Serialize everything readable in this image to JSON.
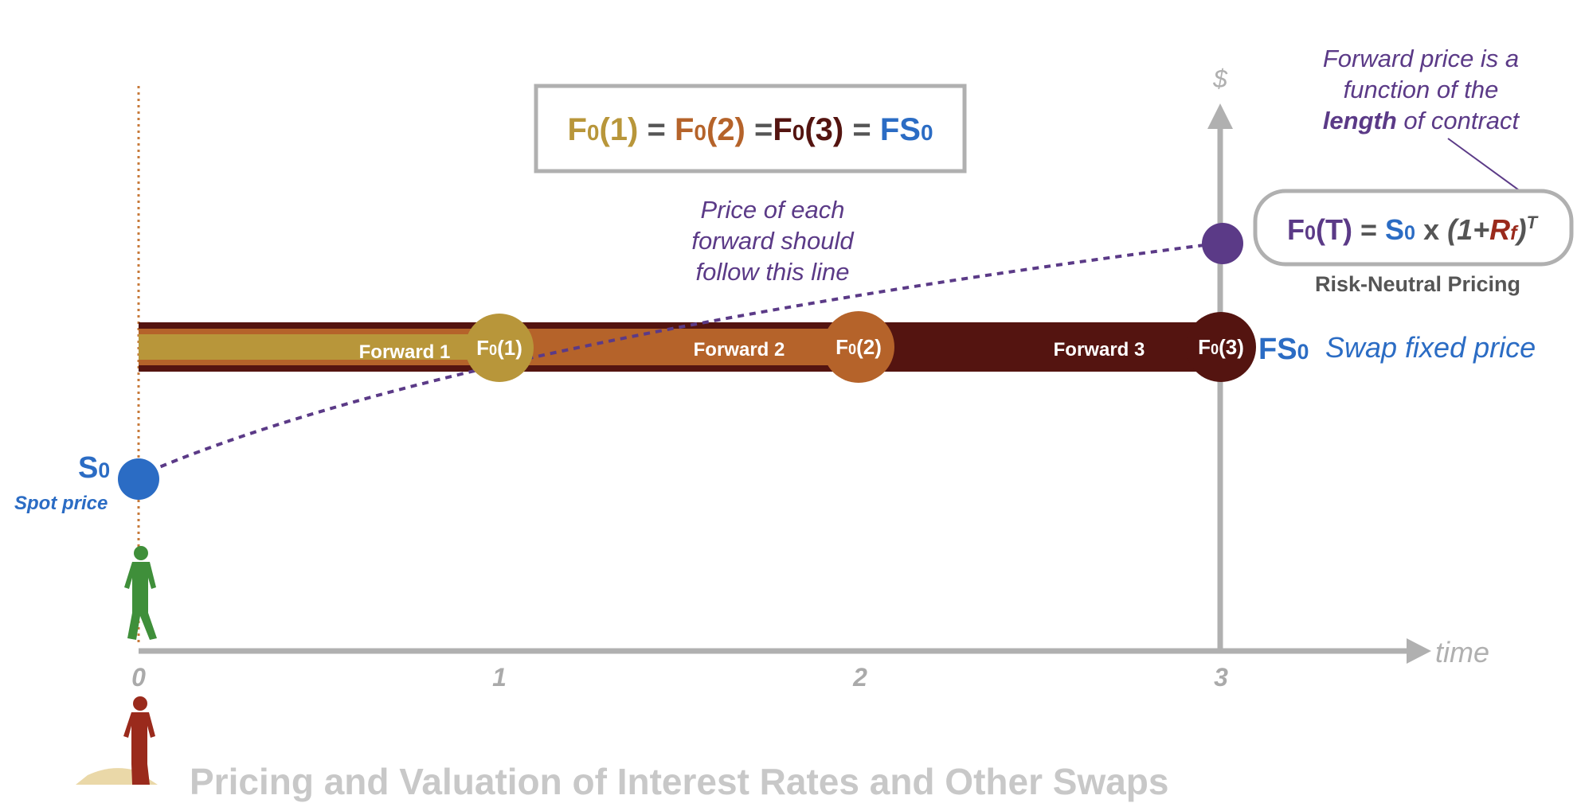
{
  "equation_box": {
    "f1": "F",
    "f1_sub": "0",
    "f1_arg": "(1)",
    "f2": "F",
    "f2_sub": "0",
    "f2_arg": "(2)",
    "f3": "F",
    "f3_sub": "0",
    "f3_arg": "(3)",
    "eq": "=",
    "fs": "FS",
    "fs_sub": "0"
  },
  "annotation_line": {
    "line1": "Price of each",
    "line2": "forward should",
    "line3": "follow this line"
  },
  "annotation_length": {
    "line1": "Forward price is a",
    "line2": "function of the",
    "line3_bold": "length",
    "line3_rest": " of contract"
  },
  "formula": {
    "lhs": "F",
    "lhs_sub": "0",
    "lhs_arg": "(T)",
    "eq": "=",
    "s": "S",
    "s_sub": "0",
    "times": "x",
    "open": "(1+",
    "r": "R",
    "r_sub": "f",
    "close": ")",
    "exp": "T",
    "caption": "Risk-Neutral Pricing"
  },
  "forwards": [
    {
      "label": "Forward 1",
      "node": "F",
      "node_sub": "0",
      "node_arg": "(1)",
      "color": "#b8963a"
    },
    {
      "label": "Forward 2",
      "node": "F",
      "node_sub": "0",
      "node_arg": "(2)",
      "color": "#b5632a"
    },
    {
      "label": "Forward 3",
      "node": "F",
      "node_sub": "0",
      "node_arg": "(3)",
      "color": "#541410"
    }
  ],
  "swap": {
    "fs": "FS",
    "fs_sub": "0",
    "label": "Swap fixed price"
  },
  "spot": {
    "s": "S",
    "s_sub": "0",
    "label": "Spot price"
  },
  "axis": {
    "y_label": "$",
    "x_label": "time",
    "ticks": [
      "0",
      "1",
      "2",
      "3"
    ]
  },
  "footer_title": "Pricing and Valuation of Interest Rates and Other Swaps",
  "colors": {
    "gold": "#b8963a",
    "orange": "#b5632a",
    "maroon": "#541410",
    "blue": "#2b6cc4",
    "purple": "#5b3a87",
    "gray_axis": "#b0b0b0",
    "green": "#3f8f3a",
    "red": "#9a2a1c",
    "sand": "#ead8a8"
  }
}
